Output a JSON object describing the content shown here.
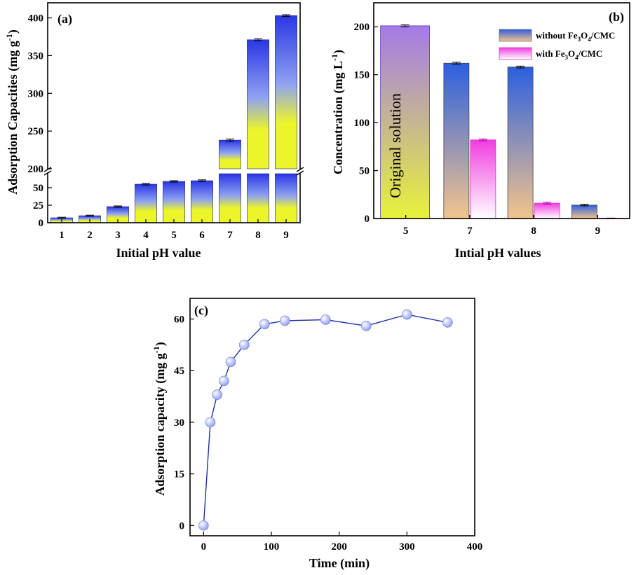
{
  "colors": {
    "bar_top": "#2a36e6",
    "bar_mid": "#8fa3f0",
    "bar_yellow": "#ecf52a",
    "without_top": "#2b5fe0",
    "without_bottom": "#f4c48c",
    "with_top": "#f03ce0",
    "with_bottom": "#ffffff",
    "original_top": "#a47ae8",
    "original_bottom": "#e8f23a",
    "marker": "#8e9cf2",
    "line": "#1f2fa8"
  },
  "chart_data": [
    {
      "panel": "(a)",
      "type": "bar",
      "categories": [
        "1",
        "2",
        "3",
        "4",
        "5",
        "6",
        "7",
        "8",
        "9"
      ],
      "values": [
        7,
        10,
        23,
        55,
        59,
        60,
        238,
        371,
        403
      ],
      "errors": [
        0.8,
        0.8,
        1,
        1.2,
        1,
        1.2,
        1.5,
        1.2,
        1.2
      ],
      "xlabel": "Initial pH value",
      "ylabel": "Adsorption Capacities (mg g",
      "ylabel_sup": "-1",
      "ylabel_end": ")",
      "axis_break": true,
      "lower_range": [
        0,
        70
      ],
      "upper_range": [
        200,
        420
      ],
      "lower_ticks": [
        "0",
        "25",
        "50"
      ],
      "upper_ticks": [
        "200",
        "250",
        "300",
        "350",
        "400"
      ]
    },
    {
      "panel": "(b)",
      "type": "bar",
      "categories": [
        "5",
        "7",
        "8",
        "9"
      ],
      "original": {
        "category": "5",
        "value": 201,
        "error": 1,
        "annotation": "Original solution"
      },
      "series": [
        {
          "name": "without Fe3O4/CMC",
          "values": [
            null,
            162,
            158,
            14
          ],
          "errors": [
            null,
            1,
            1,
            0.8
          ]
        },
        {
          "name": "with Fe3O4/CMC",
          "values": [
            null,
            82,
            16,
            0
          ],
          "errors": [
            null,
            1,
            1,
            0.5
          ]
        }
      ],
      "legend": [
        {
          "prefix": "without Fe",
          "sub1": "3",
          "mid": "O",
          "sub2": "4",
          "suffix": "/CMC"
        },
        {
          "prefix": "with Fe",
          "sub1": "3",
          "mid": "O",
          "sub2": "4",
          "suffix": "/CMC"
        }
      ],
      "xlabel": "Intial pH values",
      "ylabel": "Concentration (mg L",
      "ylabel_sup": "-1",
      "ylabel_end": ")",
      "ylim": [
        0,
        225
      ],
      "yticks": [
        "0",
        "50",
        "100",
        "150",
        "200"
      ]
    },
    {
      "panel": "(c)",
      "type": "scatter",
      "x": [
        0,
        10,
        20,
        30,
        40,
        60,
        90,
        120,
        180,
        240,
        300,
        360
      ],
      "y": [
        0,
        30,
        38,
        42,
        47.5,
        52.5,
        58.5,
        59.5,
        59.8,
        58,
        61.3,
        59
      ],
      "xlabel": "Time (min)",
      "ylabel": "Adsorption capacity (mg g",
      "ylabel_sup": "-1",
      "ylabel_end": ")",
      "xlim": [
        -20,
        400
      ],
      "ylim": [
        -3,
        66
      ],
      "xticks": [
        "0",
        "100",
        "200",
        "300",
        "400"
      ],
      "yticks": [
        "0",
        "15",
        "30",
        "45",
        "60"
      ]
    }
  ]
}
